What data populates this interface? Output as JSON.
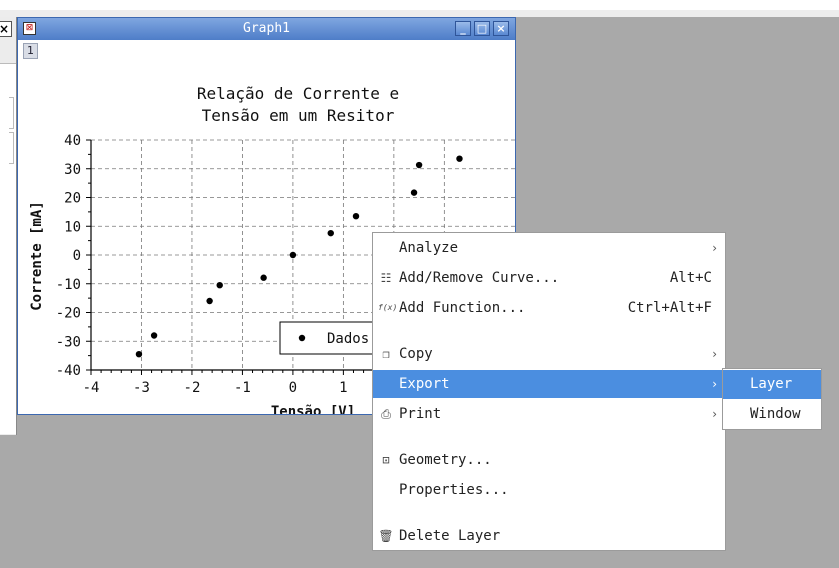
{
  "window": {
    "title": "Graph1",
    "layer_button": "1",
    "min_glyph": "_",
    "max_glyph": "□",
    "close_glyph": "×"
  },
  "left_window": {
    "close_glyph": "×"
  },
  "chart_data": {
    "type": "scatter",
    "title_lines": [
      "Relação de Corrente e",
      "Tensão em um Resitor"
    ],
    "xlabel": "Tensão [V]",
    "ylabel": "Corrente [mA]",
    "xlim": [
      -4,
      4
    ],
    "ylim": [
      -40,
      40
    ],
    "x_ticks": [
      -4,
      -3,
      -2,
      -1,
      0,
      1,
      2,
      3
    ],
    "x_tick_labels": [
      "-4",
      "-3",
      "-2",
      "-1",
      "0",
      "1"
    ],
    "y_ticks": [
      -40,
      -30,
      -20,
      -10,
      0,
      10,
      20,
      30,
      40
    ],
    "y_tick_labels": [
      "-40",
      "-30",
      "-20",
      "-10",
      "0",
      "10",
      "20",
      "30",
      "40"
    ],
    "grid": true,
    "legend": {
      "placement": "bottom-right",
      "label": "Dados"
    },
    "series": [
      {
        "name": "Dados",
        "color": "#000000",
        "points": [
          [
            -3.05,
            -34.5
          ],
          [
            -2.75,
            -28.0
          ],
          [
            -1.65,
            -16.0
          ],
          [
            -1.45,
            -10.5
          ],
          [
            -0.58,
            -7.9
          ],
          [
            0.0,
            0.0
          ],
          [
            0.75,
            7.6
          ],
          [
            1.25,
            13.5
          ],
          [
            2.4,
            21.7
          ],
          [
            2.5,
            31.3
          ],
          [
            3.3,
            33.5
          ]
        ]
      }
    ]
  },
  "context_menu": {
    "items": [
      {
        "label": "Analyze",
        "icon": "",
        "shortcut": "",
        "submenu": true
      },
      {
        "label": "Add/Remove Curve...",
        "icon": "curve-list-icon",
        "shortcut": "Alt+C",
        "submenu": false
      },
      {
        "label": "Add Function...",
        "icon": "function-icon",
        "shortcut": "Ctrl+Alt+F",
        "submenu": false
      },
      {
        "label": "Copy",
        "icon": "copy-icon",
        "shortcut": "",
        "submenu": true
      },
      {
        "label": "Export",
        "icon": "",
        "shortcut": "",
        "submenu": true
      },
      {
        "label": "Print",
        "icon": "printer-icon",
        "shortcut": "",
        "submenu": true
      },
      {
        "label": "Geometry...",
        "icon": "geometry-icon",
        "shortcut": "",
        "submenu": false
      },
      {
        "label": "Properties...",
        "icon": "",
        "shortcut": "",
        "submenu": false
      },
      {
        "label": "Delete Layer",
        "icon": "trash-icon",
        "shortcut": "",
        "submenu": false
      }
    ],
    "highlighted": "Export",
    "function_icon_text": "f(x)"
  },
  "export_submenu": {
    "items": [
      "Layer",
      "Window"
    ],
    "highlighted": "Layer"
  },
  "colors": {
    "highlight": "#4b8ee0",
    "titlebar": "#4e7dc8",
    "desktop": "#a9a9a9"
  }
}
